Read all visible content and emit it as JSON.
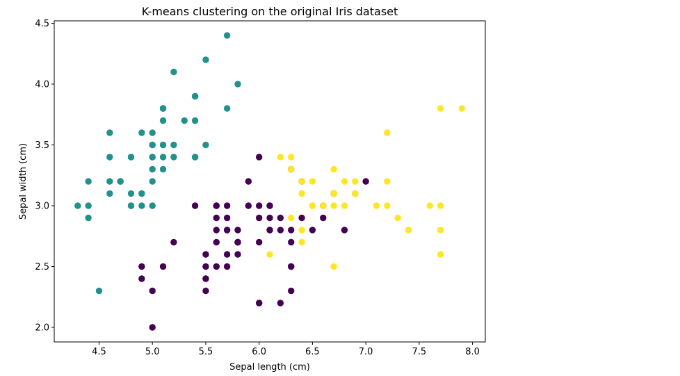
{
  "chart_data": {
    "type": "scatter",
    "title": "K-means clustering on the original Iris dataset",
    "xlabel": "Sepal length (cm)",
    "ylabel": "Sepal width (cm)",
    "xlim": [
      4.08,
      8.12
    ],
    "ylim": [
      1.88,
      4.52
    ],
    "xticks": [
      4.5,
      5.0,
      5.5,
      6.0,
      6.5,
      7.0,
      7.5,
      8.0
    ],
    "xtick_labels": [
      "4.5",
      "5.0",
      "5.5",
      "6.0",
      "6.5",
      "7.0",
      "7.5",
      "8.0"
    ],
    "yticks": [
      2.0,
      2.5,
      3.0,
      3.5,
      4.0,
      4.5
    ],
    "ytick_labels": [
      "2.0",
      "2.5",
      "3.0",
      "3.5",
      "4.0",
      "4.5"
    ],
    "grid": false,
    "legend": "none",
    "series": [
      {
        "color": "#21918c",
        "points": [
          [
            5.1,
            3.5
          ],
          [
            4.9,
            3.0
          ],
          [
            4.7,
            3.2
          ],
          [
            4.6,
            3.1
          ],
          [
            5.0,
            3.6
          ],
          [
            5.4,
            3.9
          ],
          [
            4.6,
            3.4
          ],
          [
            5.0,
            3.4
          ],
          [
            4.4,
            2.9
          ],
          [
            4.9,
            3.1
          ],
          [
            5.4,
            3.7
          ],
          [
            4.8,
            3.4
          ],
          [
            4.8,
            3.0
          ],
          [
            4.3,
            3.0
          ],
          [
            5.8,
            4.0
          ],
          [
            5.7,
            4.4
          ],
          [
            5.4,
            3.9
          ],
          [
            5.1,
            3.5
          ],
          [
            5.7,
            3.8
          ],
          [
            5.1,
            3.8
          ],
          [
            5.4,
            3.4
          ],
          [
            5.1,
            3.7
          ],
          [
            4.6,
            3.6
          ],
          [
            5.1,
            3.3
          ],
          [
            4.8,
            3.4
          ],
          [
            5.0,
            3.0
          ],
          [
            5.0,
            3.4
          ],
          [
            5.2,
            3.5
          ],
          [
            5.2,
            3.4
          ],
          [
            4.7,
            3.2
          ],
          [
            4.8,
            3.1
          ],
          [
            5.4,
            3.4
          ],
          [
            5.2,
            4.1
          ],
          [
            5.5,
            4.2
          ],
          [
            4.9,
            3.1
          ],
          [
            5.0,
            3.2
          ],
          [
            5.5,
            3.5
          ],
          [
            4.9,
            3.6
          ],
          [
            4.4,
            3.0
          ],
          [
            5.1,
            3.4
          ],
          [
            5.0,
            3.5
          ],
          [
            4.5,
            2.3
          ],
          [
            4.4,
            3.2
          ],
          [
            5.0,
            3.5
          ],
          [
            5.1,
            3.8
          ],
          [
            4.8,
            3.0
          ],
          [
            5.1,
            3.8
          ],
          [
            4.6,
            3.2
          ],
          [
            5.3,
            3.7
          ],
          [
            5.0,
            3.3
          ]
        ]
      },
      {
        "color": "#440154",
        "points": [
          [
            6.4,
            3.2
          ],
          [
            6.9,
            3.1
          ],
          [
            5.5,
            2.3
          ],
          [
            6.5,
            2.8
          ],
          [
            5.7,
            2.8
          ],
          [
            6.3,
            3.3
          ],
          [
            4.9,
            2.4
          ],
          [
            6.6,
            2.9
          ],
          [
            5.2,
            2.7
          ],
          [
            5.0,
            2.0
          ],
          [
            5.9,
            3.0
          ],
          [
            6.0,
            2.2
          ],
          [
            6.1,
            2.9
          ],
          [
            5.6,
            2.9
          ],
          [
            6.7,
            3.1
          ],
          [
            5.6,
            3.0
          ],
          [
            5.8,
            2.7
          ],
          [
            6.2,
            2.2
          ],
          [
            5.6,
            2.5
          ],
          [
            5.9,
            3.2
          ],
          [
            6.1,
            2.8
          ],
          [
            6.3,
            2.5
          ],
          [
            6.1,
            2.8
          ],
          [
            6.4,
            2.9
          ],
          [
            6.6,
            3.0
          ],
          [
            6.8,
            2.8
          ],
          [
            6.0,
            2.9
          ],
          [
            5.7,
            2.6
          ],
          [
            5.5,
            2.4
          ],
          [
            5.5,
            2.4
          ],
          [
            5.8,
            2.7
          ],
          [
            6.0,
            2.7
          ],
          [
            5.4,
            3.0
          ],
          [
            6.0,
            3.4
          ],
          [
            6.7,
            3.1
          ],
          [
            6.3,
            2.3
          ],
          [
            5.6,
            3.0
          ],
          [
            5.5,
            2.5
          ],
          [
            5.5,
            2.6
          ],
          [
            6.1,
            3.0
          ],
          [
            5.8,
            2.6
          ],
          [
            5.0,
            2.3
          ],
          [
            5.6,
            2.7
          ],
          [
            5.7,
            3.0
          ],
          [
            5.7,
            2.9
          ],
          [
            6.2,
            2.9
          ],
          [
            5.1,
            2.5
          ],
          [
            5.7,
            2.8
          ],
          [
            5.8,
            2.7
          ],
          [
            4.9,
            2.5
          ],
          [
            5.7,
            2.5
          ],
          [
            5.8,
            2.8
          ],
          [
            6.0,
            2.2
          ],
          [
            5.6,
            2.8
          ],
          [
            6.3,
            2.7
          ],
          [
            6.2,
            2.8
          ],
          [
            6.1,
            3.0
          ],
          [
            6.3,
            2.8
          ],
          [
            6.0,
            3.0
          ],
          [
            5.8,
            2.7
          ],
          [
            6.3,
            2.5
          ],
          [
            7.0,
            3.2
          ]
        ]
      },
      {
        "color": "#fde725",
        "points": [
          [
            6.3,
            3.3
          ],
          [
            7.1,
            3.0
          ],
          [
            6.5,
            3.0
          ],
          [
            7.6,
            3.0
          ],
          [
            7.3,
            2.9
          ],
          [
            6.7,
            2.5
          ],
          [
            7.2,
            3.6
          ],
          [
            6.5,
            3.2
          ],
          [
            6.4,
            2.7
          ],
          [
            6.8,
            3.0
          ],
          [
            6.4,
            3.2
          ],
          [
            6.5,
            3.0
          ],
          [
            7.7,
            3.8
          ],
          [
            7.7,
            2.6
          ],
          [
            6.9,
            3.2
          ],
          [
            7.7,
            2.8
          ],
          [
            6.7,
            3.3
          ],
          [
            7.2,
            3.2
          ],
          [
            6.4,
            2.8
          ],
          [
            7.2,
            3.0
          ],
          [
            7.4,
            2.8
          ],
          [
            7.9,
            3.8
          ],
          [
            6.4,
            2.8
          ],
          [
            6.1,
            2.6
          ],
          [
            7.7,
            3.0
          ],
          [
            6.3,
            3.4
          ],
          [
            6.4,
            3.1
          ],
          [
            6.9,
            3.1
          ],
          [
            6.7,
            3.1
          ],
          [
            6.9,
            3.1
          ],
          [
            6.8,
            3.2
          ],
          [
            6.7,
            3.3
          ],
          [
            6.7,
            3.0
          ],
          [
            6.5,
            3.0
          ],
          [
            6.2,
            3.4
          ],
          [
            6.3,
            2.9
          ],
          [
            6.6,
            3.0
          ],
          [
            6.7,
            3.1
          ]
        ]
      }
    ]
  }
}
